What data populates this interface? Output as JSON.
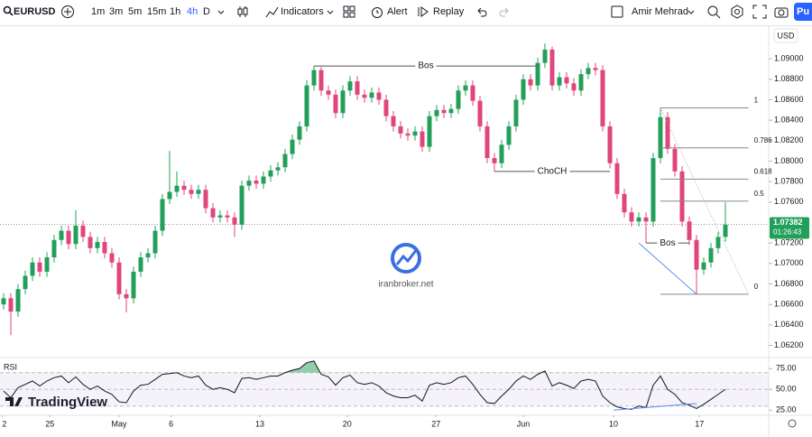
{
  "toolbar": {
    "symbol": "EURUSD",
    "intervals": [
      "1m",
      "3m",
      "5m",
      "15m",
      "1h",
      "4h",
      "D"
    ],
    "active_interval": 5,
    "indicators": "Indicators",
    "alert": "Alert",
    "replay": "Replay",
    "user": "Amir Mehrad",
    "publish": "Pu"
  },
  "logo": "TradingView",
  "chart_data": [
    {
      "type": "candlestick",
      "currency": "USD",
      "watermark": "iranbroker.net",
      "up_color": "#22a05a",
      "down_color": "#e0457b",
      "grid": false,
      "ylim": [
        1.0609,
        1.0931
      ],
      "yticks": [
        {
          "value": 1.09,
          "label": "1.09000"
        },
        {
          "value": 1.088,
          "label": "1.08800"
        },
        {
          "value": 1.086,
          "label": "1.08600"
        },
        {
          "value": 1.084,
          "label": "1.08400"
        },
        {
          "value": 1.082,
          "label": "1.08200"
        },
        {
          "value": 1.08,
          "label": "1.08000"
        },
        {
          "value": 1.078,
          "label": "1.07800"
        },
        {
          "value": 1.076,
          "label": "1.07600"
        },
        {
          "value": 1.072,
          "label": "1.07200"
        },
        {
          "value": 1.07,
          "label": "1.07000"
        },
        {
          "value": 1.068,
          "label": "1.06800"
        },
        {
          "value": 1.066,
          "label": "1.06600"
        },
        {
          "value": 1.064,
          "label": "1.06400"
        },
        {
          "value": 1.062,
          "label": "1.06200"
        }
      ],
      "xticks": [
        {
          "value": -0.2,
          "label": "2"
        },
        {
          "value": 6.4,
          "label": "25"
        },
        {
          "value": 16,
          "label": "May"
        },
        {
          "value": 23.2,
          "label": "6"
        },
        {
          "value": 35.5,
          "label": "13"
        },
        {
          "value": 47.6,
          "label": "20"
        },
        {
          "value": 59.9,
          "label": "27"
        },
        {
          "value": 72,
          "label": "Jun"
        },
        {
          "value": 84.5,
          "label": "10"
        },
        {
          "value": 96.4,
          "label": "17"
        }
      ],
      "open": [
        1.066,
        1.0666,
        1.0653,
        1.0675,
        1.0688,
        1.0701,
        1.0692,
        1.0706,
        1.0723,
        1.0732,
        1.0719,
        1.0737,
        1.0726,
        1.0715,
        1.0721,
        1.071,
        1.0701,
        1.067,
        1.0666,
        1.0692,
        1.0706,
        1.071,
        1.0732,
        1.0763,
        1.077,
        1.0776,
        1.0772,
        1.0768,
        1.0772,
        1.0754,
        1.0745,
        1.0747,
        1.0745,
        1.0738,
        1.0776,
        1.0781,
        1.0778,
        1.0785,
        1.0791,
        1.0794,
        1.0807,
        1.0821,
        1.0834,
        1.0874,
        1.0889,
        1.0869,
        1.0865,
        1.0847,
        1.0869,
        1.0878,
        1.0865,
        1.0862,
        1.0867,
        1.086,
        1.0844,
        1.0834,
        1.0827,
        1.0825,
        1.0829,
        1.0814,
        1.0844,
        1.085,
        1.0847,
        1.0851,
        1.0869,
        1.0874,
        1.0859,
        1.0834,
        1.0803,
        1.0798,
        1.0816,
        1.0834,
        1.086,
        1.088,
        1.0874,
        1.0896,
        1.0909,
        1.0874,
        1.0882,
        1.0876,
        1.0869,
        1.0885,
        1.0891,
        1.0889,
        1.0834,
        1.0798,
        1.0768,
        1.075,
        1.0741,
        1.0745,
        1.0741,
        1.0803,
        1.0843,
        1.0812,
        1.079,
        1.0741,
        1.0723,
        1.0694,
        1.0701,
        1.0715,
        1.0726
      ],
      "high": [
        1.0671,
        1.0671,
        1.068,
        1.0693,
        1.0706,
        1.0706,
        1.0711,
        1.0728,
        1.0737,
        1.0737,
        1.0752,
        1.0742,
        1.0731,
        1.0726,
        1.0726,
        1.0715,
        1.0706,
        1.0675,
        1.0697,
        1.0711,
        1.0715,
        1.0737,
        1.0768,
        1.081,
        1.079,
        1.0781,
        1.0777,
        1.0777,
        1.0777,
        1.0759,
        1.0752,
        1.0752,
        1.075,
        1.0781,
        1.0786,
        1.0786,
        1.079,
        1.0796,
        1.0799,
        1.0812,
        1.0826,
        1.0839,
        1.0879,
        1.0893,
        1.0892,
        1.0874,
        1.087,
        1.0874,
        1.0883,
        1.0883,
        1.087,
        1.0872,
        1.0872,
        1.0865,
        1.0849,
        1.0839,
        1.0832,
        1.0834,
        1.0834,
        1.0849,
        1.0855,
        1.0855,
        1.0856,
        1.0874,
        1.0879,
        1.0879,
        1.0864,
        1.0839,
        1.0808,
        1.0821,
        1.0839,
        1.0865,
        1.0885,
        1.0885,
        1.0901,
        1.0915,
        1.0912,
        1.0887,
        1.0887,
        1.0881,
        1.089,
        1.0896,
        1.0896,
        1.0894,
        1.0839,
        1.0803,
        1.0773,
        1.0755,
        1.075,
        1.075,
        1.0808,
        1.0852,
        1.0848,
        1.0817,
        1.0795,
        1.0746,
        1.0728,
        1.0706,
        1.072,
        1.0731,
        1.076
      ],
      "low": [
        1.0655,
        1.063,
        1.0648,
        1.067,
        1.0683,
        1.0687,
        1.0687,
        1.0701,
        1.0718,
        1.0714,
        1.0714,
        1.0721,
        1.071,
        1.071,
        1.0705,
        1.0696,
        1.0665,
        1.0652,
        1.0661,
        1.0687,
        1.0701,
        1.0705,
        1.0727,
        1.0758,
        1.0765,
        1.0767,
        1.0763,
        1.0763,
        1.0749,
        1.074,
        1.074,
        1.074,
        1.0726,
        1.0733,
        1.0771,
        1.0773,
        1.0773,
        1.078,
        1.0786,
        1.0789,
        1.0802,
        1.0816,
        1.0829,
        1.0869,
        1.0864,
        1.086,
        1.0842,
        1.0842,
        1.0864,
        1.086,
        1.0857,
        1.0857,
        1.0855,
        1.0839,
        1.0829,
        1.0822,
        1.082,
        1.082,
        1.0809,
        1.0809,
        1.0839,
        1.0842,
        1.0842,
        1.0846,
        1.0864,
        1.0854,
        1.0829,
        1.0798,
        1.079,
        1.0793,
        1.0811,
        1.0829,
        1.0855,
        1.0869,
        1.0869,
        1.0891,
        1.0869,
        1.0869,
        1.0871,
        1.0864,
        1.0864,
        1.088,
        1.0884,
        1.0829,
        1.0793,
        1.0763,
        1.0745,
        1.0736,
        1.0736,
        1.072,
        1.0736,
        1.0798,
        1.0807,
        1.0785,
        1.0736,
        1.0718,
        1.067,
        1.0689,
        1.0696,
        1.071,
        1.0721
      ],
      "close": [
        1.0666,
        1.0653,
        1.0675,
        1.0688,
        1.0701,
        1.0692,
        1.0706,
        1.0723,
        1.0732,
        1.0719,
        1.0737,
        1.0726,
        1.0715,
        1.0721,
        1.071,
        1.0701,
        1.067,
        1.0666,
        1.0692,
        1.0706,
        1.071,
        1.0732,
        1.0763,
        1.077,
        1.0776,
        1.0772,
        1.0768,
        1.0772,
        1.0754,
        1.0745,
        1.0747,
        1.0745,
        1.0738,
        1.0776,
        1.0781,
        1.0778,
        1.0785,
        1.0791,
        1.0794,
        1.0807,
        1.0821,
        1.0834,
        1.0874,
        1.0889,
        1.0869,
        1.0865,
        1.0847,
        1.0869,
        1.0878,
        1.0865,
        1.0862,
        1.0867,
        1.086,
        1.0844,
        1.0834,
        1.0827,
        1.0825,
        1.0829,
        1.0814,
        1.0844,
        1.085,
        1.0847,
        1.0851,
        1.0869,
        1.0874,
        1.0859,
        1.0834,
        1.0803,
        1.0798,
        1.0816,
        1.0834,
        1.086,
        1.088,
        1.0874,
        1.0896,
        1.0909,
        1.0874,
        1.0882,
        1.0876,
        1.0869,
        1.0885,
        1.0891,
        1.0889,
        1.0834,
        1.0798,
        1.0768,
        1.075,
        1.0741,
        1.0745,
        1.0741,
        1.0803,
        1.0843,
        1.0812,
        1.079,
        1.0741,
        1.0723,
        1.0694,
        1.0701,
        1.0715,
        1.0726,
        1.0738
      ],
      "current_price": 1.07382,
      "countdown": "01:26:43",
      "price_color": "#22a05a",
      "annotations": [
        {
          "text": "Bos",
          "price": 1.0893,
          "from": 43,
          "to": 74
        },
        {
          "text": "ChoCH",
          "price": 1.079,
          "from": 68,
          "to": 84
        },
        {
          "text": "Bos",
          "price": 1.072,
          "from": 89,
          "to": 95
        }
      ],
      "trendline": {
        "from": [
          88,
          1.072
        ],
        "to": [
          96,
          1.067
        ],
        "color": "#5b8def"
      },
      "fib": {
        "high": 1.0852,
        "low": 1.067,
        "start": 91,
        "end": 103.2,
        "levels": [
          1,
          0.786,
          0.618,
          0.5,
          0
        ]
      }
    },
    {
      "type": "line",
      "name": "RSI",
      "color": "#131722",
      "values": [
        48,
        40,
        52,
        56,
        60,
        54,
        60,
        64,
        66,
        58,
        65,
        56,
        50,
        54,
        48,
        44,
        35,
        34,
        48,
        55,
        56,
        62,
        68,
        69,
        70,
        66,
        64,
        66,
        55,
        50,
        52,
        50,
        46,
        63,
        64,
        62,
        64,
        66,
        66,
        70,
        73,
        75,
        82,
        84,
        68,
        65,
        55,
        64,
        67,
        58,
        56,
        58,
        54,
        46,
        42,
        40,
        40,
        43,
        36,
        55,
        58,
        56,
        58,
        64,
        66,
        56,
        44,
        34,
        33,
        42,
        50,
        60,
        66,
        62,
        68,
        72,
        54,
        58,
        55,
        51,
        60,
        62,
        60,
        42,
        34,
        29,
        27,
        26,
        30,
        28,
        55,
        66,
        50,
        44,
        34,
        31,
        27,
        32,
        38,
        44,
        50
      ],
      "ylim": [
        21,
        86
      ],
      "yticks": [
        {
          "value": 75,
          "label": "75.00"
        },
        {
          "value": 50,
          "label": "50.00"
        },
        {
          "value": 25,
          "label": "25.00"
        }
      ],
      "levels": [
        70,
        50,
        30
      ],
      "trendline": {
        "from": [
          84.5,
          25
        ],
        "to": [
          96,
          33
        ],
        "color": "#5b8def"
      }
    }
  ]
}
